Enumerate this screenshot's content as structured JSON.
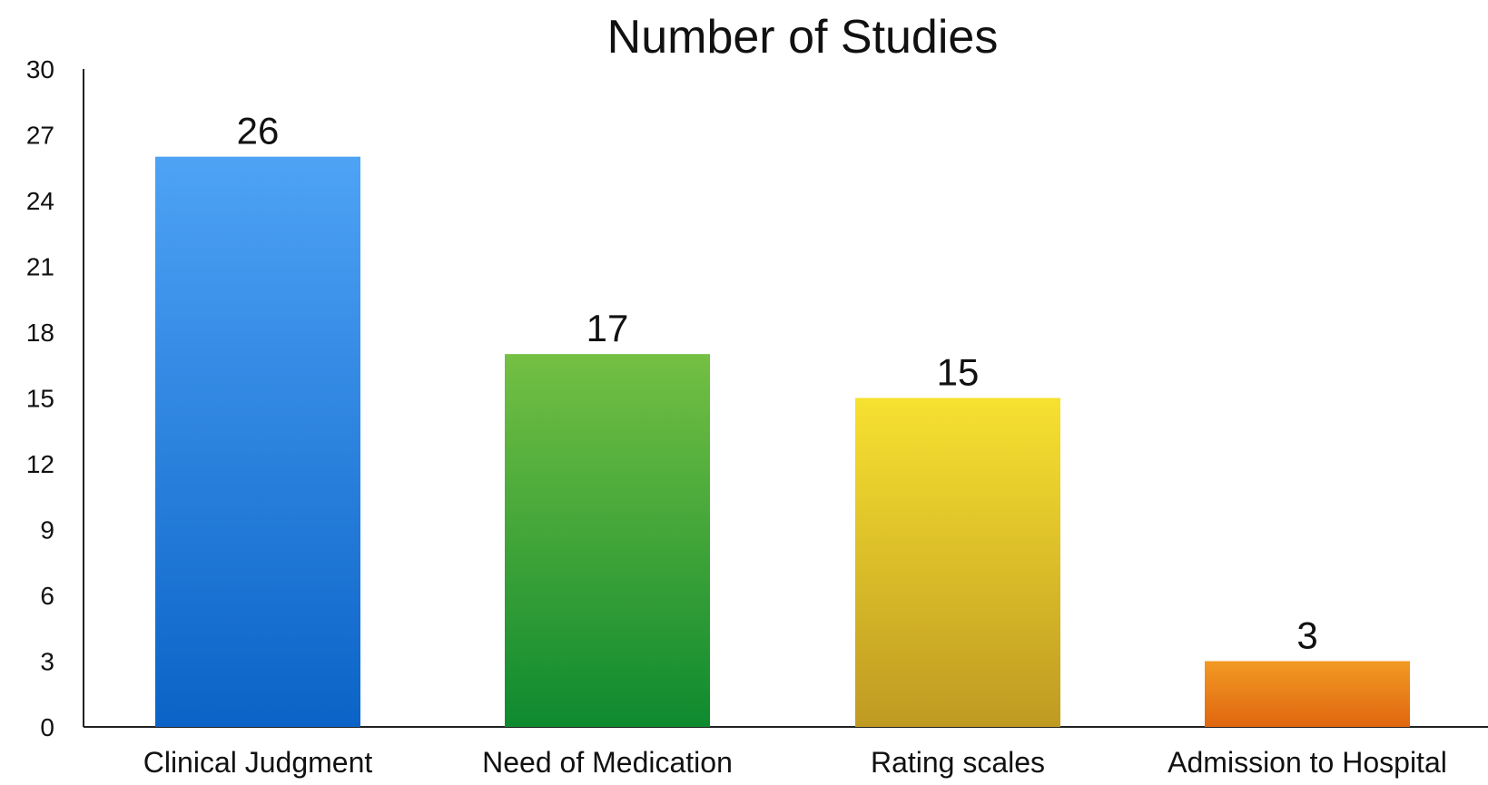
{
  "chart_data": {
    "type": "bar",
    "title": "Number of Studies",
    "xlabel": "",
    "ylabel": "",
    "categories": [
      "Clinical Judgment",
      "Need of Medication",
      "Rating scales",
      "Admission to Hospital"
    ],
    "values": [
      26,
      17,
      15,
      3
    ],
    "data_labels": [
      "26",
      "17",
      "15",
      "3"
    ],
    "ylim": [
      0,
      30
    ],
    "yticks": [
      0,
      3,
      6,
      9,
      12,
      15,
      18,
      21,
      24,
      27,
      30
    ],
    "ytick_labels": [
      "0",
      "3",
      "6",
      "9",
      "12",
      "15",
      "18",
      "21",
      "24",
      "27",
      "30"
    ],
    "grid": false,
    "legend": "none",
    "bar_colors": [
      {
        "top": "#4ea3f5",
        "bottom": "#0b63c7"
      },
      {
        "top": "#74c043",
        "bottom": "#0e8a2f"
      },
      {
        "top": "#f7e130",
        "bottom": "#bf9a22"
      },
      {
        "top": "#f29a24",
        "bottom": "#e0660f"
      }
    ]
  }
}
